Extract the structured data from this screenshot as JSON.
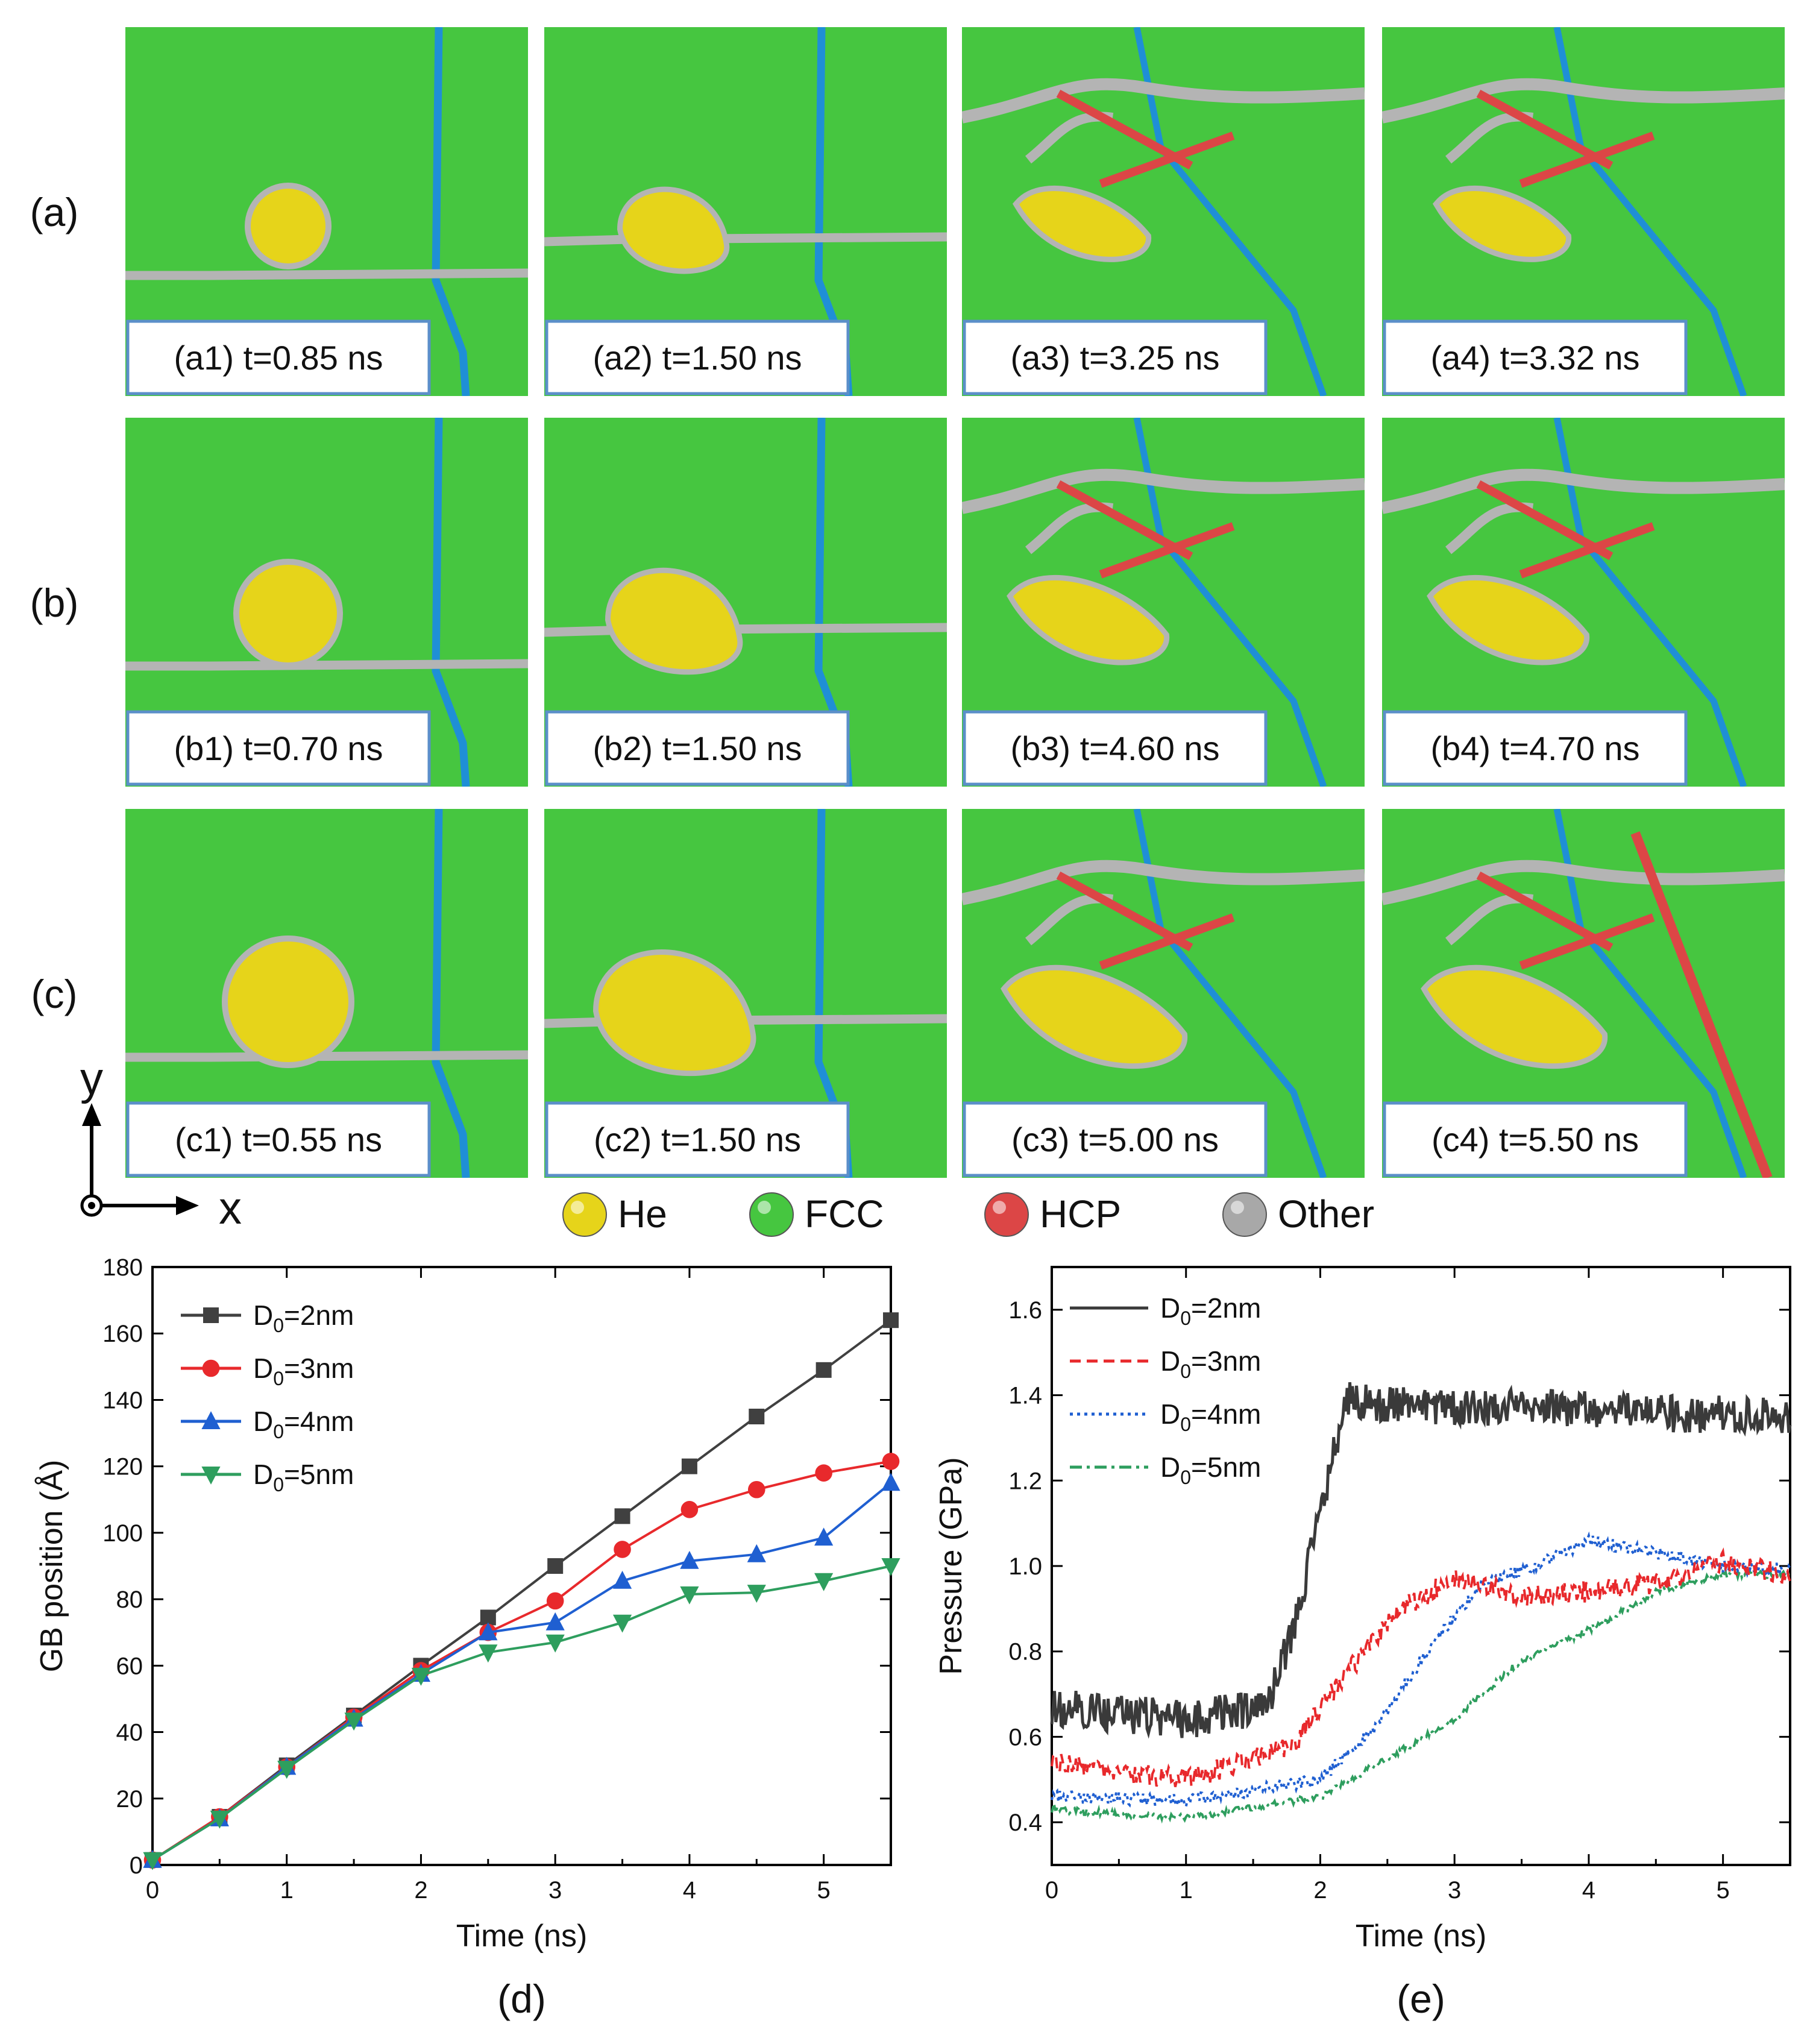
{
  "rows": [
    {
      "label": "(a)",
      "panels": [
        {
          "label": "(a1) t=0.85 ns",
          "bubble": "circle"
        },
        {
          "label": "(a2) t=1.50 ns",
          "bubble": "drop"
        },
        {
          "label": "(a3) t=3.25 ns",
          "bubble": "flat"
        },
        {
          "label": "(a4) t=3.32 ns",
          "bubble": "flat"
        }
      ]
    },
    {
      "label": "(b)",
      "panels": [
        {
          "label": "(b1) t=0.70 ns",
          "bubble": "circle"
        },
        {
          "label": "(b2) t=1.50 ns",
          "bubble": "drop"
        },
        {
          "label": "(b3) t=4.60 ns",
          "bubble": "flat"
        },
        {
          "label": "(b4) t=4.70 ns",
          "bubble": "flat"
        }
      ]
    },
    {
      "label": "(c)",
      "panels": [
        {
          "label": "(c1) t=0.55 ns",
          "bubble": "circle"
        },
        {
          "label": "(c2) t=1.50 ns",
          "bubble": "drop"
        },
        {
          "label": "(c3) t=5.00 ns",
          "bubble": "flat"
        },
        {
          "label": "(c4) t=5.50 ns",
          "bubble": "flat"
        }
      ]
    }
  ],
  "axis_labels": {
    "y": "y",
    "x": "x"
  },
  "legend_atoms": [
    {
      "name": "He",
      "color": "#e6d41a"
    },
    {
      "name": "FCC",
      "color": "#46c640"
    },
    {
      "name": "HCP",
      "color": "#dc4646"
    },
    {
      "name": "Other",
      "color": "#a8a8a8"
    }
  ],
  "colors": {
    "fcc": "#46c640",
    "gb_blue": "#1f8fd6",
    "gb_gray": "#b4b4b4",
    "hcp": "#dc4646",
    "he": "#e6d41a",
    "label_border": "#5b8fc9"
  },
  "chart_data": [
    {
      "id": "d",
      "type": "line",
      "panel_label": "(d)",
      "xlabel": "Time (ns)",
      "ylabel": "GB position (Å)",
      "xlim": [
        0,
        5.5
      ],
      "ylim": [
        0,
        180
      ],
      "xticks": [
        0,
        1,
        2,
        3,
        4,
        5
      ],
      "yticks": [
        0,
        20,
        40,
        60,
        80,
        100,
        120,
        140,
        160,
        180
      ],
      "x": [
        0,
        0.5,
        1,
        1.5,
        2,
        2.5,
        3,
        3.5,
        4,
        4.5,
        5,
        5.5
      ],
      "series": [
        {
          "name": "D0=2nm",
          "sub": "0",
          "pre": "D",
          "post": "=2nm",
          "color": "#404040",
          "marker": "square",
          "values": [
            1.5,
            14.5,
            30,
            45,
            60,
            74.5,
            90,
            105,
            120,
            135,
            149,
            164
          ]
        },
        {
          "name": "D0=3nm",
          "sub": "0",
          "pre": "D",
          "post": "=3nm",
          "color": "#e8292c",
          "marker": "circle",
          "values": [
            1.5,
            14.5,
            29.5,
            44.5,
            58.5,
            70,
            79.5,
            95,
            107,
            113,
            118,
            121.5
          ]
        },
        {
          "name": "D0=4nm",
          "sub": "0",
          "pre": "D",
          "post": "=4nm",
          "color": "#1f5fd1",
          "marker": "triangle-up",
          "values": [
            1.5,
            14,
            29.5,
            44,
            57.5,
            70,
            73,
            85.5,
            91.5,
            93.5,
            98.5,
            115
          ]
        },
        {
          "name": "D0=5nm",
          "sub": "0",
          "pre": "D",
          "post": "=5nm",
          "color": "#2e9e5e",
          "marker": "triangle-down",
          "values": [
            1.5,
            14,
            29,
            43.5,
            57,
            64,
            67,
            73,
            81.5,
            82,
            85.5,
            90
          ]
        }
      ]
    },
    {
      "id": "e",
      "type": "line",
      "panel_label": "(e)",
      "xlabel": "Time (ns)",
      "ylabel": "Pressure (GPa)",
      "xlim": [
        0,
        5.5
      ],
      "ylim": [
        0.3,
        1.7
      ],
      "xticks": [
        0,
        1,
        2,
        3,
        4,
        5
      ],
      "yticks": [
        0.4,
        0.6,
        0.8,
        1.0,
        1.2,
        1.4,
        1.6
      ],
      "ytick_labels": [
        "0.4",
        "0.6",
        "0.8",
        "1.0",
        "1.2",
        "1.4",
        "1.6"
      ],
      "noise_seed": 7,
      "series": [
        {
          "name": "D0=2nm",
          "sub": "0",
          "pre": "D",
          "post": "=2nm",
          "color": "#3a3a3a",
          "dash": "solid",
          "noise": 0.045,
          "x": [
            0,
            1.0,
            1.6,
            1.8,
            2.0,
            2.2,
            2.3,
            5.5
          ],
          "values": [
            0.67,
            0.64,
            0.67,
            0.85,
            1.12,
            1.4,
            1.38,
            1.35
          ]
        },
        {
          "name": "D0=3nm",
          "sub": "0",
          "pre": "D",
          "post": "=3nm",
          "color": "#e8292c",
          "dash": "dash",
          "noise": 0.025,
          "x": [
            0,
            1.0,
            1.8,
            2.2,
            2.6,
            3.0,
            3.5,
            4.0,
            4.5,
            5.0,
            5.5
          ],
          "values": [
            0.54,
            0.5,
            0.58,
            0.75,
            0.9,
            0.97,
            0.93,
            0.94,
            0.96,
            1.01,
            0.98
          ]
        },
        {
          "name": "D0=4nm",
          "sub": "0",
          "pre": "D",
          "post": "=4nm",
          "color": "#1f5fd1",
          "dash": "dot",
          "noise": 0.015,
          "x": [
            0,
            1.0,
            2.0,
            2.4,
            2.8,
            3.2,
            3.6,
            4.0,
            4.5,
            5.0,
            5.5
          ],
          "values": [
            0.46,
            0.45,
            0.5,
            0.62,
            0.8,
            0.96,
            1.0,
            1.06,
            1.03,
            1.0,
            0.99
          ]
        },
        {
          "name": "D0=5nm",
          "sub": "0",
          "pre": "D",
          "post": "=5nm",
          "color": "#2e9e5e",
          "dash": "dashdot",
          "noise": 0.008,
          "x": [
            0,
            1.0,
            2.0,
            2.5,
            3.0,
            3.5,
            4.0,
            4.5,
            5.0,
            5.5
          ],
          "values": [
            0.43,
            0.41,
            0.46,
            0.55,
            0.64,
            0.78,
            0.85,
            0.94,
            0.98,
            0.98
          ]
        }
      ]
    }
  ]
}
